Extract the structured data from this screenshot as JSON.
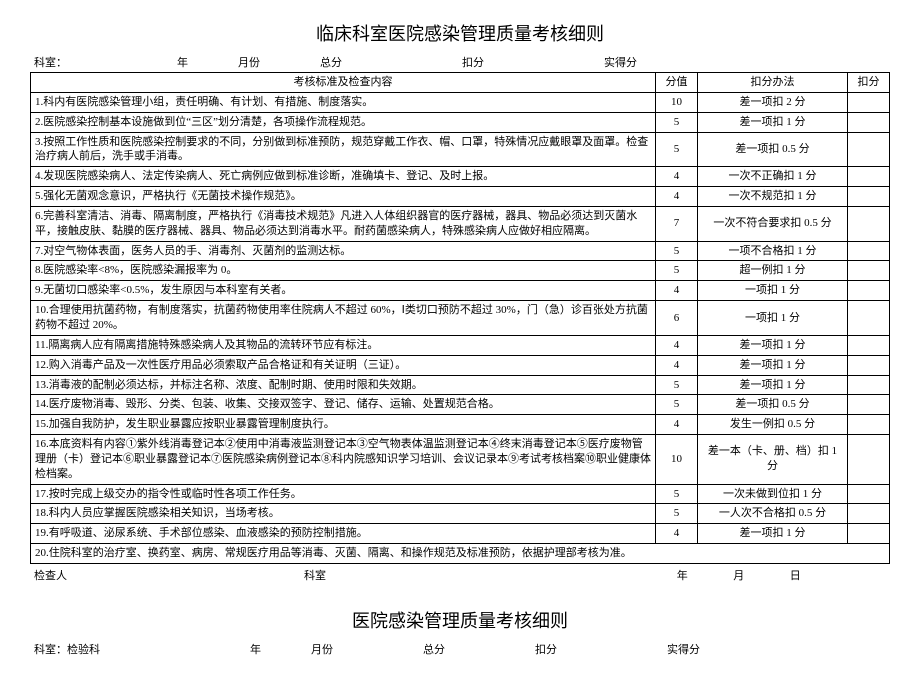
{
  "doc1": {
    "title": "临床科室医院感染管理质量考核细则",
    "header": {
      "dept_label": "科室：",
      "year_label": "年",
      "month_label": "月份",
      "total_label": "总分",
      "deduct_label": "扣分",
      "actual_label": "实得分"
    },
    "columns": {
      "content": "考核标准及检查内容",
      "score": "分值",
      "method": "扣分办法",
      "deduct": "扣分"
    },
    "rows": [
      {
        "content": "1.科内有医院感染管理小组，责任明确、有计划、有措施、制度落实。",
        "score": "10",
        "method": "差一项扣 2 分"
      },
      {
        "content": "2.医院感染控制基本设施做到位“三区”划分清楚，各项操作流程规范。",
        "score": "5",
        "method": "差一项扣 1 分"
      },
      {
        "content": "3.按照工作性质和医院感染控制要求的不同，分别做到标准预防，规范穿戴工作衣、帽、口罩，特殊情况应戴眼罩及面罩。检查治疗病人前后，洗手或手消毒。",
        "score": "5",
        "method": "差一项扣 0.5 分"
      },
      {
        "content": "4.发现医院感染病人、法定传染病人、死亡病例应做到标准诊断，准确填卡、登记、及时上报。",
        "score": "4",
        "method": "一次不正确扣 1 分"
      },
      {
        "content": "5.强化无菌观念意识，严格执行《无菌技术操作规范》。",
        "score": "4",
        "method": "一次不规范扣 1 分"
      },
      {
        "content": "6.完善科室清洁、消毒、隔离制度，严格执行《消毒技术规范》凡进入人体组织器官的医疗器械，器具、物品必须达到灭菌水平，接触皮肤、黏膜的医疗器械、器具、物品必须达到消毒水平。耐药菌感染病人，特殊感染病人应做好相应隔离。",
        "score": "7",
        "method": "一次不符合要求扣 0.5 分"
      },
      {
        "content": "7.对空气物体表面，医务人员的手、消毒剂、灭菌剂的监测达标。",
        "score": "5",
        "method": "一项不合格扣 1 分"
      },
      {
        "content": "8.医院感染率<8%，医院感染漏报率为 0。",
        "score": "5",
        "method": "超一例扣 1 分"
      },
      {
        "content": "9.无菌切口感染率<0.5%，发生原因与本科室有关者。",
        "score": "4",
        "method": "一项扣 1 分"
      },
      {
        "content": "10.合理使用抗菌药物，有制度落实，抗菌药物使用率住院病人不超过 60%，Ⅰ类切口预防不超过 30%，门（急）诊百张处方抗菌药物不超过 20%。",
        "score": "6",
        "method": "一项扣 1 分"
      },
      {
        "content": "11.隔离病人应有隔离措施特殊感染病人及其物品的流转环节应有标注。",
        "score": "4",
        "method": "差一项扣 1 分"
      },
      {
        "content": "12.购入消毒产品及一次性医疗用品必须索取产品合格证和有关证明（三证）。",
        "score": "4",
        "method": "差一项扣 1 分"
      },
      {
        "content": "13.消毒液的配制必须达标，并标注名称、浓度、配制时期、使用时限和失效期。",
        "score": "5",
        "method": "差一项扣 1 分"
      },
      {
        "content": "14.医疗废物消毒、毁形、分类、包装、收集、交接双签字、登记、储存、运输、处置规范合格。",
        "score": "5",
        "method": "差一项扣 0.5 分"
      },
      {
        "content": "15.加强自我防护，发生职业暴露应按职业暴露管理制度执行。",
        "score": "4",
        "method": "发生一例扣 0.5 分"
      },
      {
        "content": "16.本底资料有内容①紫外线消毒登记本②使用中消毒液监测登记本③空气物表体温监测登记本④终末消毒登记本⑤医疗废物管理册（卡）登记本⑥职业暴露登记本⑦医院感染病例登记本⑧科内院感知识学习培训、会议记录本⑨考试考核档案⑩职业健康体检档案。",
        "score": "10",
        "method": "差一本（卡、册、档）扣 1 分"
      },
      {
        "content": "17.按时完成上级交办的指令性或临时性各项工作任务。",
        "score": "5",
        "method": "一次未做到位扣 1 分"
      },
      {
        "content": "18.科内人员应掌握医院感染相关知识，当场考核。",
        "score": "5",
        "method": "一人次不合格扣 0.5 分"
      },
      {
        "content": "19.有呼吸道、泌尿系统、手术部位感染、血液感染的预防控制措施。",
        "score": "4",
        "method": "差一项扣 1 分"
      },
      {
        "content": "20.住院科室的治疗室、换药室、病房、常规医疗用品等消毒、灭菌、隔离、和操作规范及标准预防，依据护理部考核为准。",
        "score": "",
        "method": "",
        "fullspan": true
      }
    ],
    "footer": {
      "checker": "检查人",
      "dept": "科室",
      "date_y": "年",
      "date_m": "月",
      "date_d": "日"
    }
  },
  "doc2": {
    "title": "医院感染管理质量考核细则",
    "header": {
      "dept_label": "科室：检验科",
      "year_label": "年",
      "month_label": "月份",
      "total_label": "总分",
      "deduct_label": "扣分",
      "actual_label": "实得分"
    }
  },
  "style": {
    "text_color": "#000000",
    "bg_color": "#ffffff",
    "border_color": "#000000",
    "title_fontsize": 18,
    "body_fontsize": 11,
    "col_widths": {
      "score": 42,
      "method": 150,
      "deduct": 42
    }
  }
}
